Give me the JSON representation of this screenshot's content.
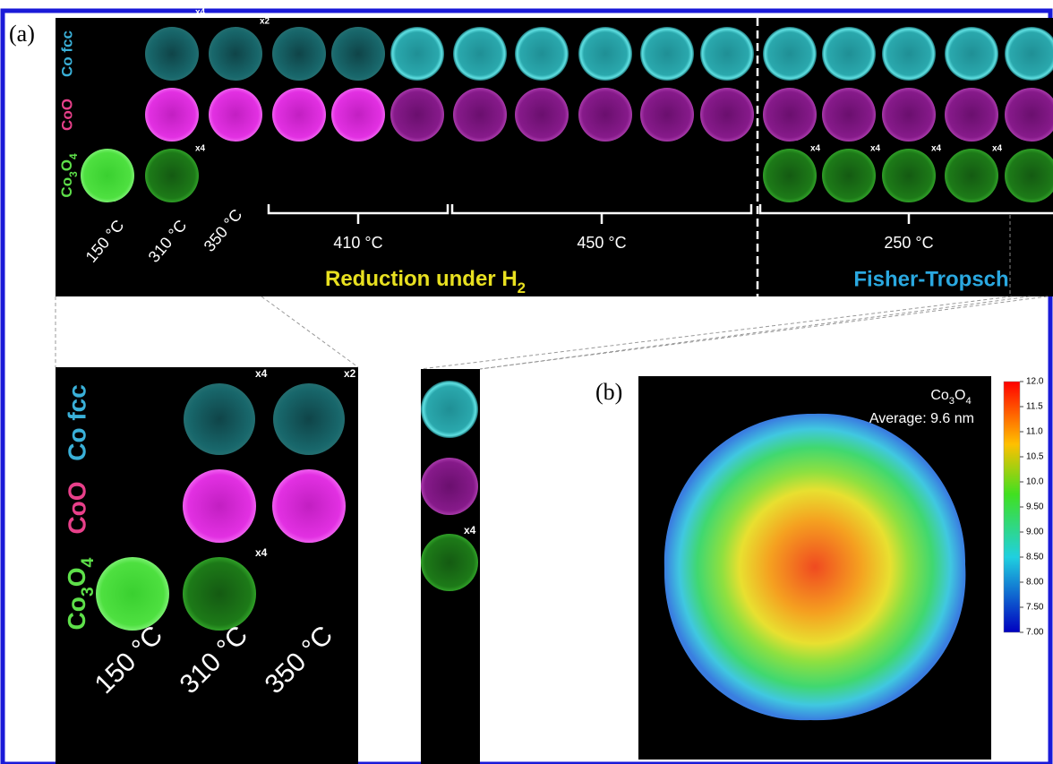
{
  "panel_a": {
    "label": "(a)",
    "rows": {
      "co_fcc": "Co fcc",
      "coo": "CoO",
      "co3o4": [
        "Co",
        "3",
        "O",
        "4"
      ]
    },
    "top_multipliers": [
      "x4",
      "x2",
      "x4",
      "x4",
      "x4",
      "x4",
      "x4"
    ],
    "top_temperatures": [
      "150 °C",
      "310 °C",
      "350 °C",
      "410 °C",
      "450 °C",
      "250 °C"
    ],
    "reduction": [
      "Reduction under H",
      "2"
    ],
    "fischer_tropsch": "Fisher-Tropsch",
    "zoom_temperatures": [
      "150 °C",
      "310 °C",
      "350 °C"
    ],
    "zoom_multipliers": [
      "x4",
      "x2",
      "x4"
    ],
    "strip_multiplier": "x4"
  },
  "panel_b": {
    "label": "(b)",
    "title": [
      "Co",
      "3",
      "O",
      "4"
    ],
    "average": "Average: 9.6 nm",
    "colorbar_lim": [
      7,
      12
    ],
    "colorbar_ticks": [
      {
        "value": 12,
        "label": "12.0"
      },
      {
        "value": 11.5,
        "label": "11.5"
      },
      {
        "value": 11,
        "label": "11.0"
      },
      {
        "value": 10.5,
        "label": "10.5"
      },
      {
        "value": 10,
        "label": "10.0"
      },
      {
        "value": 9.5,
        "label": "9.50"
      },
      {
        "value": 9,
        "label": "9.00"
      },
      {
        "value": 8.5,
        "label": "8.50"
      },
      {
        "value": 8,
        "label": "8.00"
      },
      {
        "value": 7.5,
        "label": "7.50"
      },
      {
        "value": 7,
        "label": "7.00"
      }
    ]
  }
}
